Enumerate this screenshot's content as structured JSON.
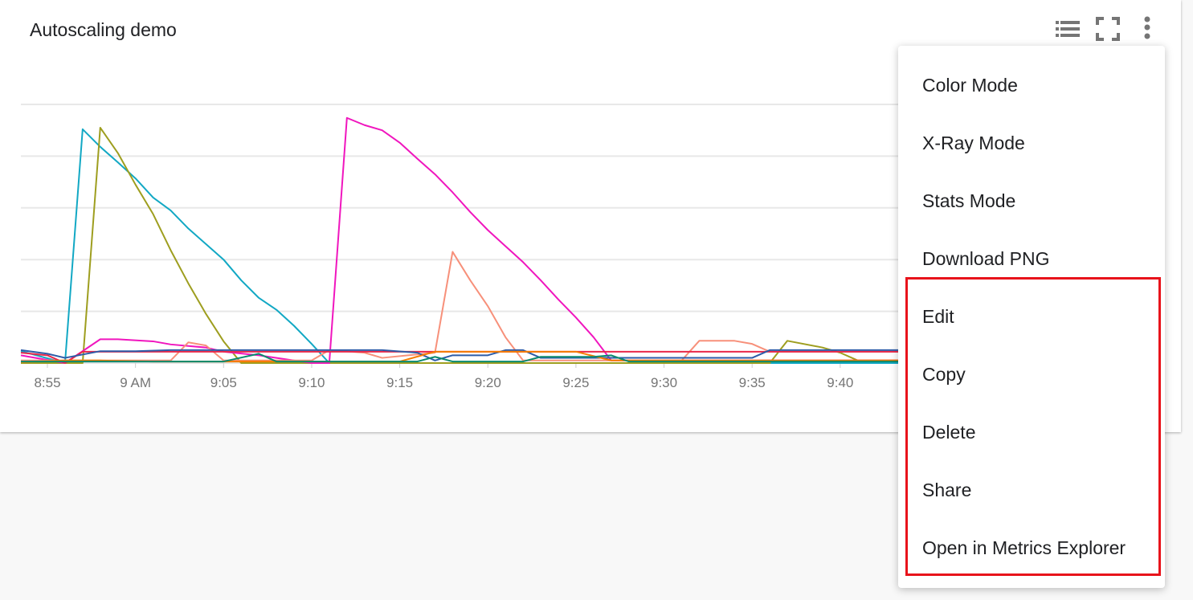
{
  "card": {
    "title": "Autoscaling demo"
  },
  "header_icons": [
    "legend-list-icon",
    "fullscreen-icon",
    "more-vert-icon"
  ],
  "menu": {
    "items": [
      "Color Mode",
      "X-Ray Mode",
      "Stats Mode",
      "Download PNG",
      "Edit",
      "Copy",
      "Delete",
      "Share",
      "Open in Metrics Explorer"
    ],
    "highlighted_items": [
      "Edit",
      "Copy",
      "Delete",
      "Share",
      "Open in Metrics Explorer"
    ],
    "highlight_color": "#e8131b"
  },
  "chart_data": {
    "type": "line",
    "title": "Autoscaling demo",
    "xlabel": "",
    "ylabel": "",
    "x_ticks": [
      "8:55",
      "9 AM",
      "9:05",
      "9:10",
      "9:15",
      "9:20",
      "9:25",
      "9:30",
      "9:35",
      "9:40"
    ],
    "y_ticks_shown": false,
    "grid": true,
    "ylim": [
      0,
      5
    ],
    "series": [
      {
        "color": "#12a8c4",
        "points": [
          [
            "8:53",
            0.23
          ],
          [
            "8:56",
            0
          ],
          [
            "8:57",
            4.52
          ],
          [
            "8:58",
            4.18
          ],
          [
            "8:59",
            3.88
          ],
          [
            "9:00",
            3.57
          ],
          [
            "9:01",
            3.2
          ],
          [
            "9:02",
            2.95
          ],
          [
            "9:03",
            2.6
          ],
          [
            "9:04",
            2.3
          ],
          [
            "9:05",
            2.0
          ],
          [
            "9:06",
            1.6
          ],
          [
            "9:07",
            1.26
          ],
          [
            "9:08",
            1.03
          ],
          [
            "9:09",
            0.72
          ],
          [
            "9:10",
            0.37
          ],
          [
            "9:11",
            0
          ],
          [
            "9:45",
            0
          ]
        ]
      },
      {
        "color": "#9e9e1f",
        "points": [
          [
            "8:53",
            0
          ],
          [
            "8:57",
            0
          ],
          [
            "8:58",
            4.55
          ],
          [
            "8:59",
            4.06
          ],
          [
            "9:00",
            3.45
          ],
          [
            "9:01",
            2.88
          ],
          [
            "9:02",
            2.18
          ],
          [
            "9:03",
            1.54
          ],
          [
            "9:04",
            0.95
          ],
          [
            "9:05",
            0.42
          ],
          [
            "9:06",
            0
          ],
          [
            "9:36",
            0
          ],
          [
            "9:37",
            0.43
          ],
          [
            "9:39",
            0.3
          ],
          [
            "9:40",
            0.2
          ],
          [
            "9:41",
            0.05
          ],
          [
            "9:45",
            0.05
          ]
        ]
      },
      {
        "color": "#f016be",
        "points": [
          [
            "8:53",
            0.15
          ],
          [
            "8:56",
            0
          ],
          [
            "8:58",
            0.46
          ],
          [
            "8:59",
            0.46
          ],
          [
            "9:01",
            0.42
          ],
          [
            "9:02",
            0.36
          ],
          [
            "9:04",
            0.3
          ],
          [
            "9:05",
            0.22
          ],
          [
            "9:07",
            0.15
          ],
          [
            "9:10",
            0
          ],
          [
            "9:11",
            0
          ],
          [
            "9:12",
            4.74
          ],
          [
            "9:13",
            4.6
          ],
          [
            "9:14",
            4.5
          ],
          [
            "9:15",
            4.26
          ],
          [
            "9:16",
            3.95
          ],
          [
            "9:17",
            3.65
          ],
          [
            "9:18",
            3.3
          ],
          [
            "9:19",
            2.92
          ],
          [
            "9:20",
            2.57
          ],
          [
            "9:21",
            2.26
          ],
          [
            "9:22",
            1.95
          ],
          [
            "9:23",
            1.6
          ],
          [
            "9:24",
            1.23
          ],
          [
            "9:25",
            0.88
          ],
          [
            "9:26",
            0.5
          ],
          [
            "9:27",
            0.05
          ],
          [
            "9:45",
            0.05
          ]
        ]
      },
      {
        "color": "#f7907a",
        "points": [
          [
            "8:53",
            0.05
          ],
          [
            "9:02",
            0.05
          ],
          [
            "9:03",
            0.4
          ],
          [
            "9:04",
            0.34
          ],
          [
            "9:05",
            0.05
          ],
          [
            "9:10",
            0.05
          ],
          [
            "9:11",
            0.25
          ],
          [
            "9:13",
            0.2
          ],
          [
            "9:14",
            0.1
          ],
          [
            "9:17",
            0.2
          ],
          [
            "9:18",
            2.15
          ],
          [
            "9:19",
            1.6
          ],
          [
            "9:20",
            1.1
          ],
          [
            "9:21",
            0.5
          ],
          [
            "9:22",
            0.05
          ],
          [
            "9:31",
            0.05
          ],
          [
            "9:32",
            0.43
          ],
          [
            "9:34",
            0.43
          ],
          [
            "9:35",
            0.37
          ],
          [
            "9:36",
            0.22
          ],
          [
            "9:45",
            0.22
          ]
        ]
      },
      {
        "color": "#e8284a",
        "points": [
          [
            "8:53",
            0.2
          ],
          [
            "8:55",
            0.15
          ],
          [
            "8:56",
            0
          ],
          [
            "8:57",
            0.22
          ],
          [
            "9:45",
            0.22
          ]
        ]
      },
      {
        "color": "#2d5ca8",
        "points": [
          [
            "8:53",
            0.25
          ],
          [
            "8:55",
            0.18
          ],
          [
            "8:56",
            0.1
          ],
          [
            "8:58",
            0.23
          ],
          [
            "9:00",
            0.23
          ],
          [
            "9:02",
            0.25
          ],
          [
            "9:14",
            0.25
          ],
          [
            "9:16",
            0.2
          ],
          [
            "9:17",
            0.05
          ],
          [
            "9:18",
            0.15
          ],
          [
            "9:20",
            0.15
          ],
          [
            "9:21",
            0.25
          ],
          [
            "9:22",
            0.25
          ],
          [
            "9:23",
            0.1
          ],
          [
            "9:35",
            0.1
          ],
          [
            "9:36",
            0.25
          ],
          [
            "9:45",
            0.25
          ]
        ]
      },
      {
        "color": "#f57c00",
        "points": [
          [
            "8:53",
            0.02
          ],
          [
            "8:56",
            0.05
          ],
          [
            "8:58",
            0.05
          ],
          [
            "9:01",
            0.03
          ],
          [
            "9:15",
            0.03
          ],
          [
            "9:17",
            0.22
          ],
          [
            "9:25",
            0.22
          ],
          [
            "9:27",
            0.05
          ],
          [
            "9:45",
            0.05
          ]
        ]
      },
      {
        "color": "#0b8a6e",
        "points": [
          [
            "8:53",
            0.03
          ],
          [
            "9:05",
            0.03
          ],
          [
            "9:07",
            0.18
          ],
          [
            "9:08",
            0.03
          ],
          [
            "9:16",
            0.03
          ],
          [
            "9:17",
            0.12
          ],
          [
            "9:18",
            0.03
          ],
          [
            "9:22",
            0.03
          ],
          [
            "9:23",
            0.12
          ],
          [
            "9:26",
            0.12
          ],
          [
            "9:27",
            0.15
          ],
          [
            "9:28",
            0.03
          ],
          [
            "9:45",
            0.03
          ]
        ]
      }
    ]
  }
}
